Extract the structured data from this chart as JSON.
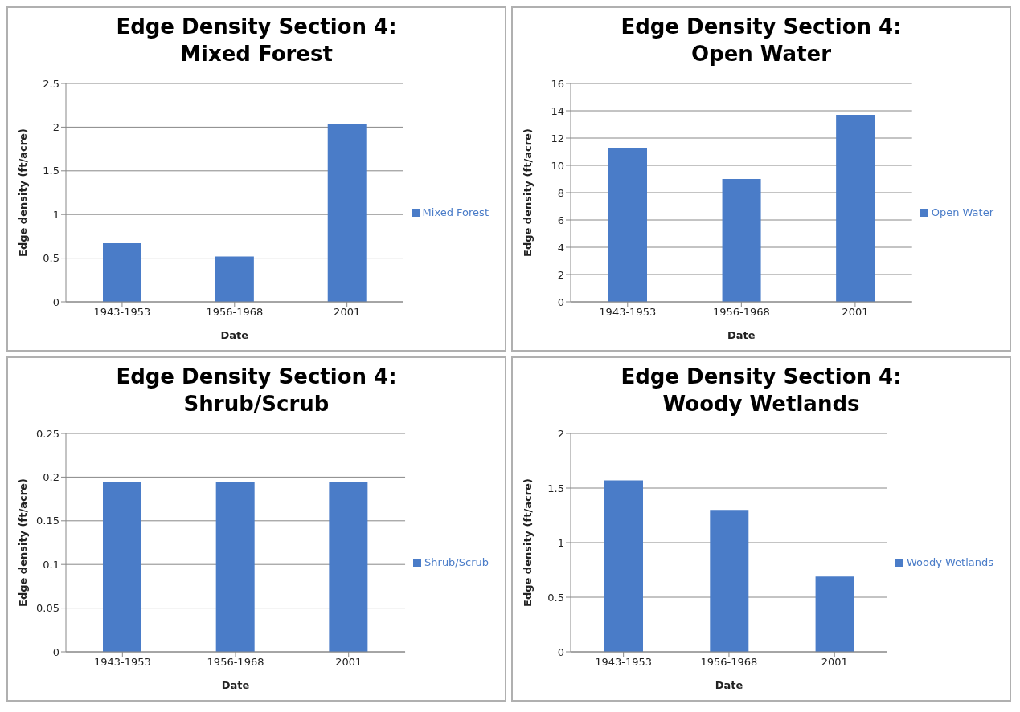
{
  "chart_data": [
    {
      "type": "bar",
      "title": "Edge Density Section 4:\nMixed Forest",
      "xlabel": "Date",
      "ylabel": "Edge density (ft/acre)",
      "categories": [
        "1943-1953",
        "1956-1968",
        "2001"
      ],
      "series": [
        {
          "name": "Mixed Forest",
          "color": "#4a7cc8",
          "values": [
            0.67,
            0.52,
            2.04
          ]
        }
      ],
      "ylim": [
        0,
        2.5
      ],
      "yticks": [
        0,
        0.5,
        1,
        1.5,
        2,
        2.5
      ],
      "grid": "y",
      "legend": "right"
    },
    {
      "type": "bar",
      "title": "Edge Density Section 4:\nOpen Water",
      "xlabel": "Date",
      "ylabel": "Edge density (ft/acre)",
      "categories": [
        "1943-1953",
        "1956-1968",
        "2001"
      ],
      "series": [
        {
          "name": "Open Water",
          "color": "#4a7cc8",
          "values": [
            11.3,
            9.0,
            13.7
          ]
        }
      ],
      "ylim": [
        0,
        16
      ],
      "yticks": [
        0,
        2,
        4,
        6,
        8,
        10,
        12,
        14,
        16
      ],
      "grid": "y",
      "legend": "right"
    },
    {
      "type": "bar",
      "title": "Edge Density Section 4:\nShrub/Scrub",
      "xlabel": "Date",
      "ylabel": "Edge density (ft/acre)",
      "categories": [
        "1943-1953",
        "1956-1968",
        "2001"
      ],
      "series": [
        {
          "name": "Shrub/Scrub",
          "color": "#4a7cc8",
          "values": [
            0.194,
            0.194,
            0.194
          ]
        }
      ],
      "ylim": [
        0,
        0.25
      ],
      "yticks": [
        0,
        0.05,
        0.1,
        0.15,
        0.2,
        0.25
      ],
      "grid": "y",
      "legend": "right"
    },
    {
      "type": "bar",
      "title": "Edge Density Section 4:\nWoody Wetlands",
      "xlabel": "Date",
      "ylabel": "Edge density (ft/acre)",
      "categories": [
        "1943-1953",
        "1956-1968",
        "2001"
      ],
      "series": [
        {
          "name": "Woody Wetlands",
          "color": "#4a7cc8",
          "values": [
            1.57,
            1.3,
            0.69
          ]
        }
      ],
      "ylim": [
        0,
        2
      ],
      "yticks": [
        0,
        0.5,
        1,
        1.5,
        2
      ],
      "grid": "y",
      "legend": "right"
    }
  ]
}
